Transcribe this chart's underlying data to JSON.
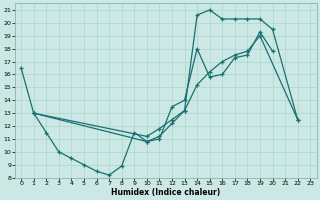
{
  "xlabel": "Humidex (Indice chaleur)",
  "bg_color": "#cce8e5",
  "grid_color": "#b0d8d4",
  "line_color": "#1a7070",
  "xlim": [
    -0.5,
    23.5
  ],
  "ylim": [
    8,
    21.5
  ],
  "xticks": [
    0,
    1,
    2,
    3,
    4,
    5,
    6,
    7,
    8,
    9,
    10,
    11,
    12,
    13,
    14,
    15,
    16,
    17,
    18,
    19,
    20,
    21,
    22,
    23
  ],
  "yticks": [
    8,
    9,
    10,
    11,
    12,
    13,
    14,
    15,
    16,
    17,
    18,
    19,
    20,
    21
  ],
  "line1_x": [
    0,
    1,
    2,
    3,
    4,
    5,
    6,
    7,
    8,
    9,
    10,
    11,
    12,
    13,
    14,
    15,
    16,
    17,
    18,
    19,
    20
  ],
  "line1_y": [
    16.5,
    13.0,
    11.5,
    10.0,
    9.5,
    9.0,
    8.5,
    8.2,
    8.9,
    11.5,
    10.8,
    11.0,
    13.5,
    14.0,
    18.0,
    15.8,
    16.0,
    17.3,
    17.5,
    19.3,
    17.8
  ],
  "line2_x": [
    1,
    10,
    11,
    12,
    13,
    14,
    15,
    16,
    17,
    18,
    19,
    20,
    22
  ],
  "line2_y": [
    13.0,
    10.8,
    11.2,
    12.2,
    13.2,
    20.6,
    21.0,
    20.3,
    20.3,
    20.3,
    20.3,
    19.5,
    12.5
  ],
  "line3_x": [
    1,
    10,
    11,
    12,
    13,
    14,
    15,
    16,
    17,
    18,
    19,
    22
  ],
  "line3_y": [
    13.0,
    11.2,
    11.8,
    12.5,
    13.2,
    15.2,
    16.2,
    17.0,
    17.5,
    17.8,
    19.0,
    12.5
  ]
}
